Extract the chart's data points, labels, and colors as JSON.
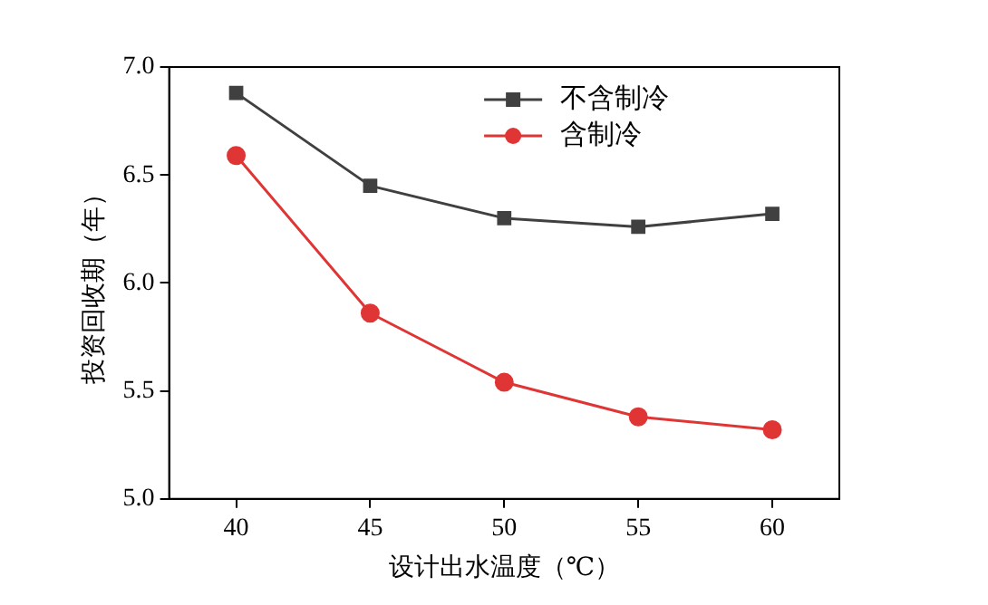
{
  "chart_data": {
    "type": "line",
    "xlabel": "设计出水温度（℃）",
    "ylabel": "投资回收期（年）",
    "x": [
      40,
      45,
      50,
      55,
      60
    ],
    "series": [
      {
        "name": "不含制冷",
        "color": "#404040",
        "marker": "square",
        "values": [
          6.88,
          6.45,
          6.3,
          6.26,
          6.32
        ]
      },
      {
        "name": "含制冷",
        "color": "#e03535",
        "marker": "circle",
        "values": [
          6.59,
          5.86,
          5.54,
          5.38,
          5.32
        ]
      }
    ],
    "xlim": [
      37.5,
      62.5
    ],
    "xticks": [
      40,
      45,
      50,
      55,
      60
    ],
    "ylim": [
      5,
      7
    ],
    "yticks": [
      {
        "value": 5,
        "label": "5.0"
      },
      5.5,
      {
        "value": 6,
        "label": "6.0"
      },
      6.5,
      {
        "value": 7,
        "label": "7.0"
      }
    ],
    "grid": false,
    "legend": "top"
  }
}
